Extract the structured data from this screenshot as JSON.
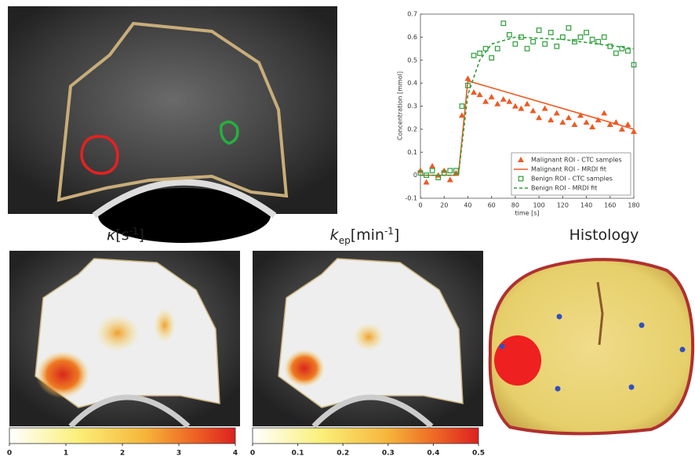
{
  "chart_data": {
    "type": "line",
    "xlabel": "time [s]",
    "ylabel": "Concentration [mmol]",
    "xlim": [
      0,
      180
    ],
    "xticks": [
      0,
      20,
      40,
      60,
      80,
      100,
      120,
      140,
      160,
      180
    ],
    "ylim": [
      -0.1,
      0.7
    ],
    "yticks": [
      -0.1,
      0,
      0.1,
      0.2,
      0.3,
      0.4,
      0.5,
      0.6,
      0.7
    ],
    "legend": "lower right",
    "series": [
      {
        "name": "Malignant ROI - CTC samples",
        "color": "#ee5a24",
        "marker": "^",
        "x": [
          0,
          5,
          10,
          15,
          20,
          25,
          30,
          35,
          40,
          45,
          50,
          55,
          60,
          65,
          70,
          75,
          80,
          85,
          90,
          95,
          100,
          105,
          110,
          115,
          120,
          125,
          130,
          135,
          140,
          145,
          150,
          155,
          160,
          165,
          170,
          175,
          180
        ],
        "values": [
          0.02,
          -0.03,
          0.04,
          0.0,
          0.02,
          -0.02,
          0.01,
          0.26,
          0.42,
          0.36,
          0.35,
          0.32,
          0.34,
          0.31,
          0.33,
          0.32,
          0.3,
          0.29,
          0.31,
          0.28,
          0.25,
          0.29,
          0.24,
          0.27,
          0.23,
          0.25,
          0.22,
          0.26,
          0.23,
          0.21,
          0.24,
          0.27,
          0.22,
          0.23,
          0.2,
          0.22,
          0.19
        ]
      },
      {
        "name": "Malignant ROI - MRDI fit",
        "color": "#ee5a24",
        "linestyle": "-",
        "x": [
          0,
          32,
          40,
          180
        ],
        "values": [
          0,
          0,
          0.41,
          0.2
        ]
      },
      {
        "name": "Benign ROI - CTC samples",
        "color": "#2e9e3a",
        "marker": "s",
        "x": [
          0,
          5,
          10,
          15,
          20,
          25,
          30,
          35,
          40,
          45,
          50,
          55,
          60,
          65,
          70,
          75,
          80,
          85,
          90,
          95,
          100,
          105,
          110,
          115,
          120,
          125,
          130,
          135,
          140,
          145,
          150,
          155,
          160,
          165,
          170,
          175,
          180
        ],
        "values": [
          0.01,
          0.0,
          0.02,
          -0.01,
          0.01,
          0.02,
          0.02,
          0.3,
          0.39,
          0.52,
          0.53,
          0.55,
          0.51,
          0.55,
          0.66,
          0.61,
          0.57,
          0.6,
          0.55,
          0.58,
          0.63,
          0.57,
          0.62,
          0.56,
          0.6,
          0.64,
          0.58,
          0.6,
          0.62,
          0.59,
          0.58,
          0.6,
          0.56,
          0.53,
          0.55,
          0.54,
          0.48
        ]
      },
      {
        "name": "Benign ROI - MRDI fit",
        "color": "#2e9e3a",
        "linestyle": "--",
        "x": [
          0,
          32,
          40,
          50,
          60,
          80,
          120,
          180
        ],
        "values": [
          0,
          0,
          0.35,
          0.5,
          0.57,
          0.6,
          0.59,
          0.55
        ]
      }
    ]
  },
  "panels": {
    "kappa": {
      "symbol": "κ",
      "unit": "[s",
      "exponent": "-1",
      "close": "]"
    },
    "kep": {
      "symbol": "k",
      "subscript": "ep",
      "unit": "[min",
      "exponent": "-1",
      "close": "]"
    },
    "histology": {
      "title": "Histology"
    }
  },
  "colorbars": [
    {
      "lim": [
        0,
        4
      ],
      "ticks": [
        0,
        1,
        2,
        3,
        4
      ]
    },
    {
      "lim": [
        0,
        0.5
      ],
      "ticks": [
        0,
        0.1,
        0.2,
        0.3,
        0.4,
        0.5
      ]
    }
  ]
}
